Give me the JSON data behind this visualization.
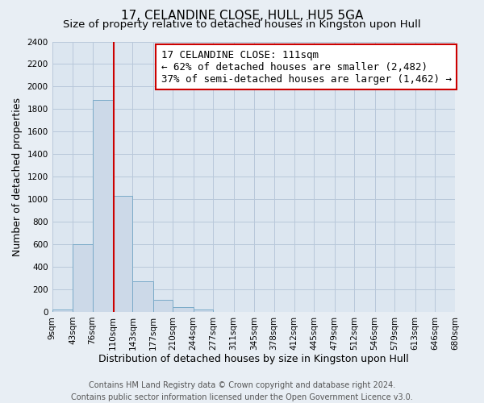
{
  "title": "17, CELANDINE CLOSE, HULL, HU5 5GA",
  "subtitle": "Size of property relative to detached houses in Kingston upon Hull",
  "xlabel": "Distribution of detached houses by size in Kingston upon Hull",
  "ylabel": "Number of detached properties",
  "footer_line1": "Contains HM Land Registry data © Crown copyright and database right 2024.",
  "footer_line2": "Contains public sector information licensed under the Open Government Licence v3.0.",
  "bin_edges": [
    9,
    43,
    76,
    110,
    143,
    177,
    210,
    244,
    277,
    311,
    345,
    378,
    412,
    445,
    479,
    512,
    546,
    579,
    613,
    646,
    680
  ],
  "bin_heights": [
    20,
    600,
    1880,
    1030,
    275,
    110,
    45,
    20,
    0,
    0,
    0,
    0,
    0,
    0,
    0,
    0,
    0,
    0,
    0,
    0
  ],
  "bar_facecolor": "#ccd9e8",
  "bar_edgecolor": "#7aaac8",
  "property_line_x": 111,
  "property_line_color": "#cc0000",
  "annotation_box_text": "17 CELANDINE CLOSE: 111sqm\n← 62% of detached houses are smaller (2,482)\n37% of semi-detached houses are larger (1,462) →",
  "annotation_box_facecolor": "white",
  "annotation_box_edgecolor": "#cc0000",
  "ylim": [
    0,
    2400
  ],
  "yticks": [
    0,
    200,
    400,
    600,
    800,
    1000,
    1200,
    1400,
    1600,
    1800,
    2000,
    2200,
    2400
  ],
  "grid_color": "#b8c8da",
  "plot_bg_color": "#dce6f0",
  "fig_bg_color": "#e8eef4",
  "title_fontsize": 11,
  "subtitle_fontsize": 9.5,
  "tick_label_fontsize": 7.5,
  "axis_label_fontsize": 9,
  "annotation_fontsize": 9,
  "footer_fontsize": 7
}
